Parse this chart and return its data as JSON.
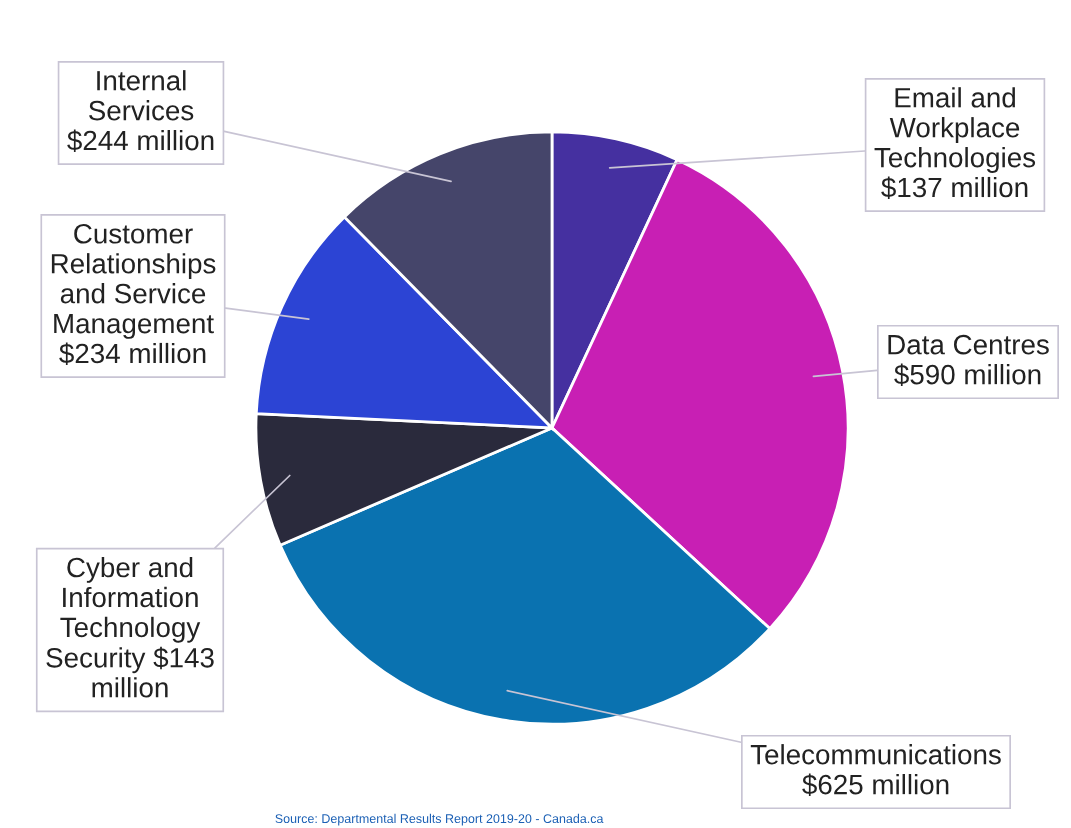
{
  "chart_data": {
    "type": "pie",
    "categories": [
      "Email and Workplace Technologies",
      "Data Centres",
      "Telecommunications",
      "Cyber and Information Technology Security",
      "Customer Relationships and Service Management",
      "Internal Services"
    ],
    "values": [
      137,
      590,
      625,
      143,
      234,
      244
    ],
    "value_labels": [
      "$137 million",
      "$590 million",
      "$625 million",
      "$143 million",
      "$234 million",
      "$244 million"
    ],
    "colors": [
      "#4530a0",
      "#c81fb4",
      "#0a72b0",
      "#2a2a3c",
      "#2c44d4",
      "#45456a"
    ],
    "annotations": [
      "Source: Departmental Results Report 2019-20 - Canada.ca"
    ]
  }
}
